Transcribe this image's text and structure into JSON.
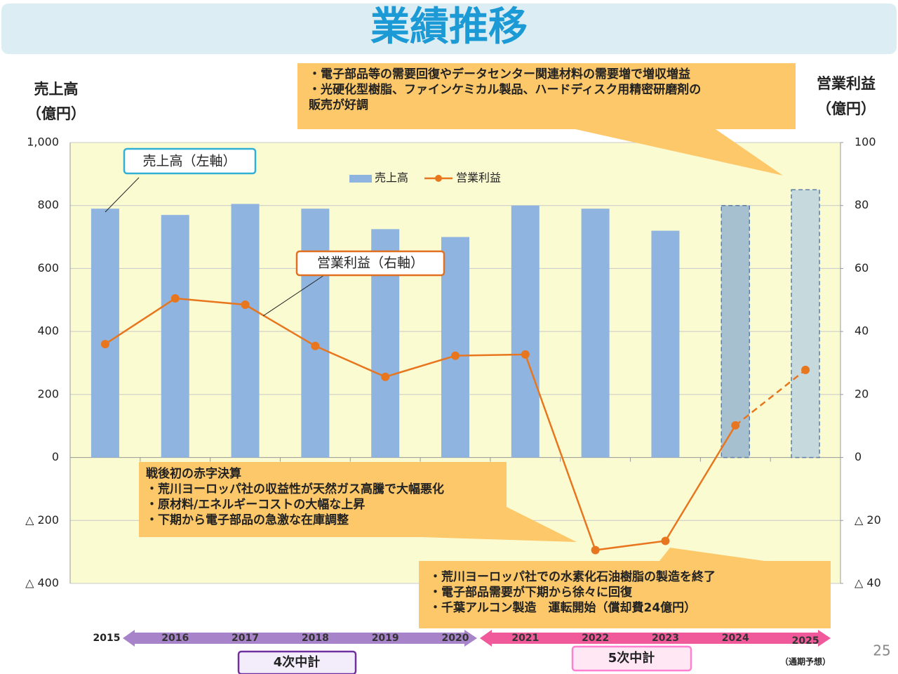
{
  "chart_data": {
    "type": "combo",
    "title": "業績推移",
    "y_label": [
      "売上高",
      "（億円）"
    ],
    "y2_label": [
      "営業利益",
      "（億円）"
    ],
    "categories": [
      "2015",
      "2016",
      "2017",
      "2018",
      "2019",
      "2020",
      "2021",
      "2022",
      "2023",
      "2024",
      "2025"
    ],
    "series": [
      {
        "name": "売上高",
        "kind": "bar",
        "color": "#8fb4e0",
        "colors": [
          "#8fb4e0",
          "#8fb4e0",
          "#8fb4e0",
          "#8fb4e0",
          "#8fb4e0",
          "#8fb4e0",
          "#8fb4e0",
          "#8fb4e0",
          "#8fb4e0",
          "#a7c0cf",
          "#c6d9dd"
        ],
        "values": [
          790,
          770,
          805,
          790,
          725,
          700,
          800,
          790,
          720,
          800,
          850
        ]
      },
      {
        "name": "営業利益",
        "kind": "line",
        "axis": "y2",
        "color": "#e8761e",
        "values": [
          36,
          50.5,
          48.5,
          35.4,
          25.6,
          32.3,
          32.7,
          -29.4,
          -26.5,
          10.2,
          27.8
        ]
      }
    ],
    "forecast_categories": [
      "2024",
      "2025"
    ],
    "ylim": [
      -400,
      1000
    ],
    "yticks": [
      {
        "value": -400,
        "label": "△ 400"
      },
      {
        "value": -200,
        "label": "△ 200"
      },
      0,
      200,
      400,
      600,
      800,
      {
        "value": 1000,
        "label": "1,000"
      }
    ],
    "y2lim": [
      -40,
      100
    ],
    "y2ticks": [
      {
        "value": -40,
        "label": "△ 40"
      },
      {
        "value": -20,
        "label": "△ 20"
      },
      0,
      20,
      40,
      60,
      80,
      100
    ],
    "grid": true,
    "callouts": [
      "売上高（左軸）",
      "営業利益（右軸）"
    ],
    "annotations": [
      {
        "lines": [
          "・電子部品等の需要回復やデータセンター関連材料の需要増で増収増益",
          "・光硬化型樹脂、ファインケミカル製品、ハードディスク用精密研磨剤の",
          "販売が好調"
        ]
      },
      {
        "lines": [
          "戦後初の赤字決算",
          "・荒川ヨーロッパ社の収益性が天然ガス高騰で大幅悪化",
          "・原材料/エネルギーコストの大幅な上昇",
          "・下期から電子部品の急激な在庫調整"
        ]
      },
      {
        "lines": [
          "・荒川ヨーロッパ社での水素化石油樹脂の製造を終了",
          "・電子部品需要が下期から徐々に回復",
          "・千葉アルコン製造　運転開始（償却費24億円）"
        ]
      }
    ],
    "periods": [
      "4次中計",
      "5次中計"
    ],
    "forecast_note": "（通期予想）"
  },
  "page_number": 25
}
